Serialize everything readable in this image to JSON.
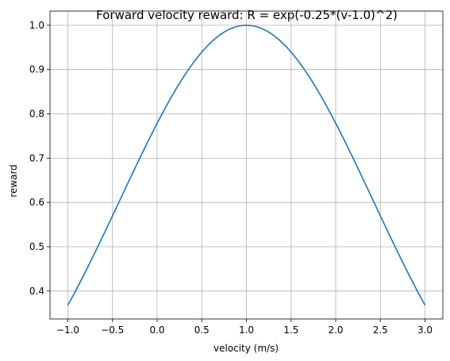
{
  "chart_data": {
    "type": "line",
    "title": "Forward velocity reward: R = exp(-0.25*(v-1.0)^2)",
    "xlabel": "velocity (m/s)",
    "ylabel": "reward",
    "xlim": [
      -1.2,
      3.2
    ],
    "ylim": [
      0.337,
      1.032
    ],
    "xticks": [
      -1.0,
      -0.5,
      0.0,
      0.5,
      1.0,
      1.5,
      2.0,
      2.5,
      3.0
    ],
    "xtick_labels": [
      "−1.0",
      "−0.5",
      "0.0",
      "0.5",
      "1.0",
      "1.5",
      "2.0",
      "2.5",
      "3.0"
    ],
    "yticks": [
      0.4,
      0.5,
      0.6,
      0.7,
      0.8,
      0.9,
      1.0
    ],
    "ytick_labels": [
      "0.4",
      "0.5",
      "0.6",
      "0.7",
      "0.8",
      "0.9",
      "1.0"
    ],
    "grid": true,
    "series": [
      {
        "color": "#1f77b4",
        "x": [
          -1.0,
          -0.75,
          -0.5,
          -0.25,
          0.0,
          0.25,
          0.5,
          0.75,
          1.0,
          1.25,
          1.5,
          1.75,
          2.0,
          2.25,
          2.5,
          2.75,
          3.0
        ],
        "y": [
          0.368,
          0.465,
          0.57,
          0.677,
          0.779,
          0.869,
          0.939,
          0.984,
          1.0,
          0.984,
          0.939,
          0.869,
          0.779,
          0.677,
          0.57,
          0.465,
          0.368
        ]
      }
    ]
  }
}
